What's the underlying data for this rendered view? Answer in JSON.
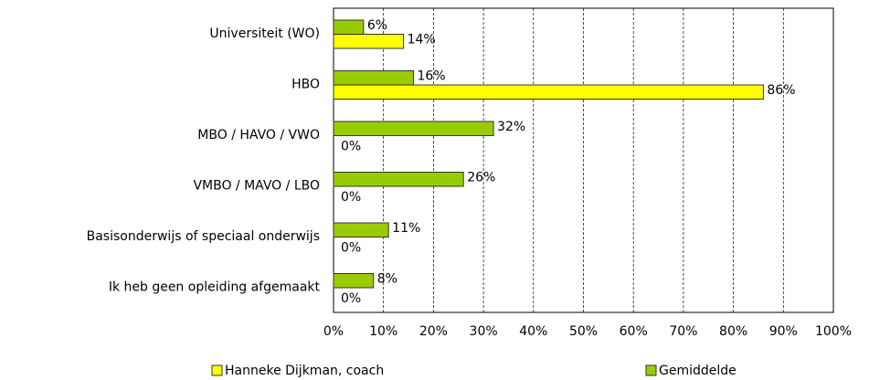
{
  "chart_data": {
    "type": "bar",
    "orientation": "horizontal",
    "categories": [
      "Universiteit (WO)",
      "HBO",
      "MBO / HAVO / VWO",
      "VMBO / MAVO / LBO",
      "Basisonderwijs of speciaal onderwijs",
      "Ik heb geen opleiding afgemaakt"
    ],
    "series": [
      {
        "name": "Gemiddelde",
        "color": "#99cc00",
        "values": [
          6,
          16,
          32,
          26,
          11,
          8
        ],
        "value_labels": [
          "6%",
          "16%",
          "32%",
          "26%",
          "11%",
          "8%"
        ]
      },
      {
        "name": "Hanneke Dijkman, coach",
        "color": "#ffff00",
        "values": [
          14,
          86,
          0,
          0,
          0,
          0
        ],
        "value_labels": [
          "14%",
          "86%",
          "0%",
          "0%",
          "0%",
          "0%"
        ]
      }
    ],
    "xlim": [
      0,
      100
    ],
    "xticks": [
      {
        "value": 0,
        "label": "0%"
      },
      {
        "value": 10,
        "label": "10%"
      },
      {
        "value": 20,
        "label": "20%"
      },
      {
        "value": 30,
        "label": "30%"
      },
      {
        "value": 40,
        "label": "40%"
      },
      {
        "value": 50,
        "label": "50%"
      },
      {
        "value": 60,
        "label": "60%"
      },
      {
        "value": 70,
        "label": "70%"
      },
      {
        "value": 80,
        "label": "80%"
      },
      {
        "value": 90,
        "label": "90%"
      },
      {
        "value": 100,
        "label": "100%"
      }
    ],
    "grid": true,
    "legend": "bottom"
  }
}
